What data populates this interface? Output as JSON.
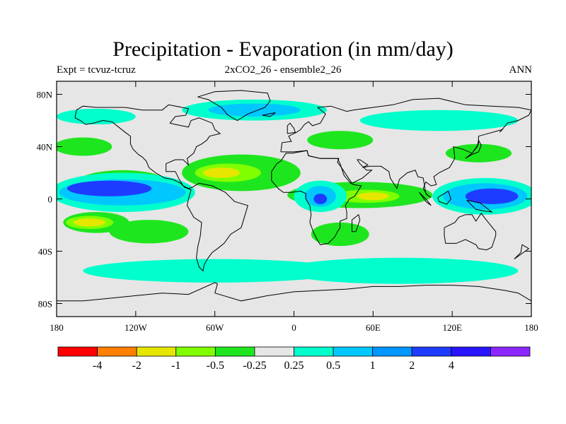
{
  "title": "Precipitation - Evaporation (in mm/day)",
  "subtitle_left": "Expt = tcvuz-tcruz",
  "subtitle_center": "2xCO2_26 - ensemble2_26",
  "subtitle_right": "ANN",
  "lat_ticks": [
    {
      "value": 80,
      "label": "80N"
    },
    {
      "value": 40,
      "label": "40N"
    },
    {
      "value": 0,
      "label": "0"
    },
    {
      "value": -40,
      "label": "40S"
    },
    {
      "value": -80,
      "label": "80S"
    }
  ],
  "lon_ticks": [
    {
      "value": -180,
      "label": "180"
    },
    {
      "value": -120,
      "label": "120W"
    },
    {
      "value": -60,
      "label": "60W"
    },
    {
      "value": 0,
      "label": "0"
    },
    {
      "value": 60,
      "label": "60E"
    },
    {
      "value": 120,
      "label": "120E"
    },
    {
      "value": 180,
      "label": "180"
    }
  ],
  "colorbar": {
    "colors": [
      "#ff0000",
      "#ff8000",
      "#e6e600",
      "#80ff00",
      "#1ee61e",
      "#e6e6e6",
      "#00ffcc",
      "#00c8ff",
      "#0096ff",
      "#1e3cff",
      "#2814ff",
      "#8c28ff"
    ],
    "labels": [
      "-4",
      "-2",
      "-1",
      "-0.5",
      "-0.25",
      "0.25",
      "0.5",
      "1",
      "2",
      "4"
    ]
  },
  "fields": [
    {
      "level": "green",
      "color": "#1ee61e",
      "lon": -130,
      "lat": 12,
      "rx": 35,
      "ry": 10
    },
    {
      "level": "green",
      "color": "#1ee61e",
      "lon": -40,
      "lat": 20,
      "rx": 45,
      "ry": 14
    },
    {
      "level": "green",
      "color": "#1ee61e",
      "lon": 50,
      "lat": 3,
      "rx": 55,
      "ry": 10
    },
    {
      "level": "green",
      "color": "#1ee61e",
      "lon": 35,
      "lat": 45,
      "rx": 25,
      "ry": 7
    },
    {
      "level": "green",
      "color": "#1ee61e",
      "lon": -150,
      "lat": -18,
      "rx": 25,
      "ry": 8
    },
    {
      "level": "green",
      "color": "#1ee61e",
      "lon": -110,
      "lat": -25,
      "rx": 30,
      "ry": 9
    },
    {
      "level": "green",
      "color": "#1ee61e",
      "lon": 35,
      "lat": -27,
      "rx": 22,
      "ry": 9
    },
    {
      "level": "green",
      "color": "#1ee61e",
      "lon": -160,
      "lat": 40,
      "rx": 22,
      "ry": 7
    },
    {
      "level": "green",
      "color": "#1ee61e",
      "lon": 140,
      "lat": 35,
      "rx": 25,
      "ry": 7
    },
    {
      "level": "light-green",
      "color": "#80ff00",
      "lon": -50,
      "lat": 20,
      "rx": 25,
      "ry": 7
    },
    {
      "level": "light-green",
      "color": "#80ff00",
      "lon": 55,
      "lat": 2,
      "rx": 25,
      "ry": 5
    },
    {
      "level": "light-green",
      "color": "#80ff00",
      "lon": -155,
      "lat": -18,
      "rx": 18,
      "ry": 5
    },
    {
      "level": "yellow",
      "color": "#e6e600",
      "lon": -55,
      "lat": 20,
      "rx": 14,
      "ry": 4
    },
    {
      "level": "yellow",
      "color": "#e6e600",
      "lon": -155,
      "lat": -18,
      "rx": 12,
      "ry": 3
    },
    {
      "level": "yellow",
      "color": "#e6e600",
      "lon": 60,
      "lat": 2,
      "rx": 12,
      "ry": 3
    },
    {
      "level": "cyan",
      "color": "#00ffcc",
      "lon": -60,
      "lat": -55,
      "rx": 100,
      "ry": 9
    },
    {
      "level": "cyan",
      "color": "#00ffcc",
      "lon": 80,
      "lat": -55,
      "rx": 90,
      "ry": 10
    },
    {
      "level": "cyan",
      "color": "#00ffcc",
      "lon": -150,
      "lat": 63,
      "rx": 30,
      "ry": 6
    },
    {
      "level": "cyan",
      "color": "#00ffcc",
      "lon": -30,
      "lat": 68,
      "rx": 55,
      "ry": 8
    },
    {
      "level": "cyan",
      "color": "#00ffcc",
      "lon": 110,
      "lat": 60,
      "rx": 60,
      "ry": 8
    },
    {
      "level": "cyan",
      "color": "#00ffcc",
      "lon": -130,
      "lat": 5,
      "rx": 55,
      "ry": 15
    },
    {
      "level": "cyan",
      "color": "#00ffcc",
      "lon": 145,
      "lat": 2,
      "rx": 40,
      "ry": 14
    },
    {
      "level": "cyan",
      "color": "#00ffcc",
      "lon": 20,
      "lat": 2,
      "rx": 20,
      "ry": 12
    },
    {
      "level": "light-blue",
      "color": "#00c8ff",
      "lon": -30,
      "lat": 68,
      "rx": 35,
      "ry": 5
    },
    {
      "level": "light-blue",
      "color": "#00c8ff",
      "lon": -130,
      "lat": 5,
      "rx": 48,
      "ry": 10
    },
    {
      "level": "light-blue",
      "color": "#00c8ff",
      "lon": 145,
      "lat": 2,
      "rx": 32,
      "ry": 10
    },
    {
      "level": "light-blue",
      "color": "#00c8ff",
      "lon": 20,
      "lat": 2,
      "rx": 12,
      "ry": 8
    },
    {
      "level": "blue",
      "color": "#1e3cff",
      "lon": -140,
      "lat": 8,
      "rx": 32,
      "ry": 6
    },
    {
      "level": "blue",
      "color": "#1e3cff",
      "lon": 150,
      "lat": 2,
      "rx": 20,
      "ry": 6
    },
    {
      "level": "blue",
      "color": "#1e3cff",
      "lon": 20,
      "lat": 0,
      "rx": 5,
      "ry": 4
    }
  ],
  "coastlines": [
    [
      [
        -165,
        68
      ],
      [
        -160,
        71
      ],
      [
        -150,
        70
      ],
      [
        -140,
        70
      ],
      [
        -128,
        70
      ],
      [
        -115,
        68
      ],
      [
        -100,
        68
      ],
      [
        -95,
        72
      ],
      [
        -80,
        69
      ],
      [
        -82,
        64
      ],
      [
        -90,
        63
      ],
      [
        -94,
        58
      ],
      [
        -90,
        57
      ],
      [
        -80,
        55
      ],
      [
        -78,
        60
      ],
      [
        -72,
        62
      ],
      [
        -62,
        58
      ],
      [
        -60,
        53
      ],
      [
        -56,
        50
      ],
      [
        -64,
        48
      ],
      [
        -66,
        45
      ],
      [
        -70,
        42
      ],
      [
        -74,
        40
      ],
      [
        -76,
        35
      ],
      [
        -81,
        31
      ],
      [
        -80,
        26
      ],
      [
        -82,
        28
      ],
      [
        -84,
        30
      ],
      [
        -90,
        30
      ],
      [
        -97,
        27
      ],
      [
        -97,
        21
      ],
      [
        -90,
        21
      ],
      [
        -87,
        15
      ],
      [
        -84,
        10
      ],
      [
        -80,
        8
      ],
      [
        -77,
        9
      ],
      [
        -72,
        12
      ],
      [
        -62,
        10
      ],
      [
        -52,
        5
      ],
      [
        -45,
        -2
      ],
      [
        -35,
        -5
      ],
      [
        -37,
        -12
      ],
      [
        -40,
        -22
      ],
      [
        -48,
        -27
      ],
      [
        -53,
        -34
      ],
      [
        -58,
        -38
      ],
      [
        -62,
        -41
      ],
      [
        -65,
        -45
      ],
      [
        -68,
        -50
      ],
      [
        -69,
        -55
      ],
      [
        -72,
        -52
      ],
      [
        -74,
        -45
      ],
      [
        -73,
        -37
      ],
      [
        -71,
        -28
      ],
      [
        -70,
        -18
      ],
      [
        -76,
        -14
      ],
      [
        -81,
        -5
      ],
      [
        -80,
        0
      ],
      [
        -78,
        7
      ],
      [
        -83,
        9
      ],
      [
        -86,
        12
      ],
      [
        -92,
        15
      ],
      [
        -98,
        16
      ],
      [
        -105,
        20
      ],
      [
        -110,
        24
      ],
      [
        -112,
        29
      ],
      [
        -115,
        32
      ],
      [
        -118,
        34
      ],
      [
        -122,
        38
      ],
      [
        -124,
        42
      ],
      [
        -124,
        48
      ],
      [
        -128,
        51
      ],
      [
        -133,
        55
      ],
      [
        -138,
        59
      ],
      [
        -145,
        60
      ],
      [
        -152,
        58
      ],
      [
        -158,
        57
      ],
      [
        -162,
        60
      ],
      [
        -166,
        62
      ],
      [
        -165,
        68
      ]
    ],
    [
      [
        -73,
        78
      ],
      [
        -60,
        82
      ],
      [
        -40,
        83
      ],
      [
        -20,
        81
      ],
      [
        -18,
        75
      ],
      [
        -22,
        70
      ],
      [
        -35,
        65
      ],
      [
        -43,
        60
      ],
      [
        -50,
        64
      ],
      [
        -55,
        70
      ],
      [
        -65,
        76
      ],
      [
        -73,
        78
      ]
    ],
    [
      [
        -10,
        36
      ],
      [
        -9,
        43
      ],
      [
        -2,
        44
      ],
      [
        -4,
        48
      ],
      [
        2,
        51
      ],
      [
        5,
        53
      ],
      [
        8,
        57
      ],
      [
        11,
        59
      ],
      [
        14,
        56
      ],
      [
        20,
        58
      ],
      [
        24,
        65
      ],
      [
        18,
        70
      ],
      [
        28,
        71
      ],
      [
        40,
        67
      ],
      [
        45,
        68
      ],
      [
        60,
        70
      ],
      [
        75,
        72
      ],
      [
        90,
        76
      ],
      [
        110,
        77
      ],
      [
        130,
        72
      ],
      [
        150,
        71
      ],
      [
        170,
        70
      ],
      [
        180,
        68
      ],
      [
        178,
        64
      ],
      [
        170,
        60
      ],
      [
        162,
        58
      ],
      [
        156,
        51
      ],
      [
        158,
        53
      ],
      [
        140,
        48
      ],
      [
        140,
        42
      ],
      [
        135,
        35
      ],
      [
        128,
        38
      ],
      [
        121,
        40
      ],
      [
        122,
        31
      ],
      [
        118,
        24
      ],
      [
        110,
        20
      ],
      [
        106,
        17
      ],
      [
        108,
        11
      ],
      [
        104,
        10
      ],
      [
        100,
        13
      ],
      [
        98,
        8
      ],
      [
        101,
        3
      ],
      [
        104,
        1
      ],
      [
        100,
        4
      ],
      [
        98,
        16
      ],
      [
        94,
        17
      ],
      [
        92,
        22
      ],
      [
        86,
        20
      ],
      [
        80,
        15
      ],
      [
        78,
        8
      ],
      [
        73,
        16
      ],
      [
        72,
        21
      ],
      [
        66,
        25
      ],
      [
        57,
        25
      ],
      [
        52,
        24
      ],
      [
        56,
        26
      ],
      [
        50,
        30
      ],
      [
        48,
        30
      ],
      [
        50,
        27
      ],
      [
        55,
        22
      ],
      [
        59,
        22
      ],
      [
        52,
        16
      ],
      [
        44,
        12
      ],
      [
        42,
        15
      ],
      [
        36,
        24
      ],
      [
        33,
        28
      ],
      [
        34,
        31
      ],
      [
        28,
        31
      ],
      [
        20,
        31
      ],
      [
        11,
        33
      ],
      [
        10,
        37
      ],
      [
        0,
        36
      ],
      [
        -6,
        36
      ],
      [
        -10,
        36
      ]
    ],
    [
      [
        -17,
        21
      ],
      [
        -17,
        14
      ],
      [
        -12,
        8
      ],
      [
        -8,
        5
      ],
      [
        -2,
        5
      ],
      [
        5,
        6
      ],
      [
        9,
        4
      ],
      [
        9,
        0
      ],
      [
        12,
        -5
      ],
      [
        13,
        -12
      ],
      [
        12,
        -18
      ],
      [
        15,
        -26
      ],
      [
        18,
        -32
      ],
      [
        20,
        -35
      ],
      [
        26,
        -34
      ],
      [
        31,
        -29
      ],
      [
        33,
        -25
      ],
      [
        35,
        -22
      ],
      [
        35,
        -17
      ],
      [
        40,
        -15
      ],
      [
        40,
        -10
      ],
      [
        39,
        -5
      ],
      [
        42,
        0
      ],
      [
        46,
        2
      ],
      [
        51,
        10
      ],
      [
        45,
        11
      ],
      [
        43,
        12
      ],
      [
        38,
        18
      ],
      [
        35,
        27
      ],
      [
        33,
        31
      ],
      [
        25,
        31
      ],
      [
        20,
        31
      ],
      [
        11,
        33
      ],
      [
        10,
        37
      ],
      [
        -1,
        35
      ],
      [
        -6,
        35
      ],
      [
        -10,
        29
      ],
      [
        -13,
        27
      ],
      [
        -17,
        21
      ]
    ],
    [
      [
        114,
        -22
      ],
      [
        114,
        -28
      ],
      [
        115,
        -34
      ],
      [
        123,
        -34
      ],
      [
        130,
        -31
      ],
      [
        138,
        -35
      ],
      [
        140,
        -38
      ],
      [
        146,
        -39
      ],
      [
        150,
        -37
      ],
      [
        153,
        -28
      ],
      [
        153,
        -25
      ],
      [
        145,
        -15
      ],
      [
        142,
        -11
      ],
      [
        138,
        -17
      ],
      [
        135,
        -12
      ],
      [
        130,
        -12
      ],
      [
        125,
        -14
      ],
      [
        122,
        -18
      ],
      [
        114,
        -22
      ]
    ],
    [
      [
        -180,
        -78
      ],
      [
        -160,
        -78
      ],
      [
        -140,
        -76
      ],
      [
        -120,
        -74
      ],
      [
        -100,
        -72
      ],
      [
        -80,
        -73
      ],
      [
        -60,
        -64
      ],
      [
        -58,
        -65
      ],
      [
        -60,
        -72
      ],
      [
        -40,
        -78
      ],
      [
        -20,
        -74
      ],
      [
        0,
        -71
      ],
      [
        20,
        -70
      ],
      [
        40,
        -69
      ],
      [
        60,
        -67
      ],
      [
        80,
        -67
      ],
      [
        100,
        -66
      ],
      [
        120,
        -66
      ],
      [
        140,
        -67
      ],
      [
        160,
        -70
      ],
      [
        170,
        -72
      ],
      [
        180,
        -78
      ]
    ],
    [
      [
        44,
        -25
      ],
      [
        47,
        -25
      ],
      [
        50,
        -16
      ],
      [
        49,
        -12
      ],
      [
        44,
        -16
      ],
      [
        44,
        -25
      ]
    ],
    [
      [
        95,
        5
      ],
      [
        100,
        0
      ],
      [
        104,
        -5
      ],
      [
        100,
        -2
      ],
      [
        95,
        5
      ]
    ],
    [
      [
        109,
        1
      ],
      [
        117,
        6
      ],
      [
        119,
        0
      ],
      [
        116,
        -4
      ],
      [
        110,
        -2
      ],
      [
        109,
        1
      ]
    ],
    [
      [
        131,
        -1
      ],
      [
        141,
        -3
      ],
      [
        150,
        -10
      ],
      [
        143,
        -9
      ],
      [
        138,
        -8
      ],
      [
        131,
        -1
      ]
    ],
    [
      [
        130,
        31
      ],
      [
        135,
        34
      ],
      [
        140,
        36
      ],
      [
        142,
        41
      ],
      [
        140,
        45
      ],
      [
        139,
        40
      ],
      [
        135,
        35
      ],
      [
        130,
        31
      ]
    ],
    [
      [
        -5,
        50
      ],
      [
        1,
        51
      ],
      [
        0,
        54
      ],
      [
        -3,
        58
      ],
      [
        -5,
        56
      ],
      [
        -5,
        50
      ]
    ],
    [
      [
        167,
        -46
      ],
      [
        174,
        -41
      ],
      [
        178,
        -38
      ],
      [
        173,
        -35
      ],
      [
        172,
        -41
      ],
      [
        167,
        -46
      ]
    ],
    [
      [
        -24,
        64
      ],
      [
        -14,
        66
      ],
      [
        -18,
        63
      ],
      [
        -24,
        64
      ]
    ]
  ]
}
